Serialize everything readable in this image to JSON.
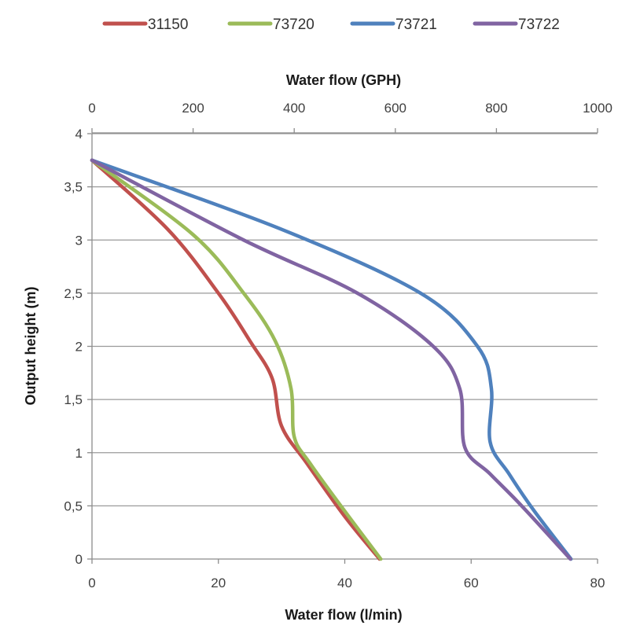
{
  "chart_data": {
    "type": "line",
    "legend_position": "top",
    "grid": "horizontal",
    "xlabel": "Water flow (l/min)",
    "x2label": "Water flow (GPH)",
    "ylabel": "Output height (m)",
    "xlim": [
      0,
      80
    ],
    "x2lim": [
      0,
      1000
    ],
    "ylim": [
      0,
      4
    ],
    "xticks": [
      "0",
      "20",
      "40",
      "60",
      "80"
    ],
    "x2ticks": [
      "0",
      "200",
      "400",
      "600",
      "800",
      "1000"
    ],
    "yticks": [
      "0",
      "0,5",
      "1",
      "1,5",
      "2",
      "2,5",
      "3",
      "3,5",
      "4"
    ],
    "series": [
      {
        "name": "31150",
        "color": "#c0504d",
        "points": [
          [
            45.5,
            0
          ],
          [
            40,
            0.4
          ],
          [
            34,
            0.9
          ],
          [
            30,
            1.25
          ],
          [
            28.5,
            1.7
          ],
          [
            25,
            2.05
          ],
          [
            20,
            2.5
          ],
          [
            12,
            3.1
          ],
          [
            0,
            3.75
          ]
        ]
      },
      {
        "name": "73720",
        "color": "#9bbb59",
        "points": [
          [
            45.7,
            0
          ],
          [
            40,
            0.45
          ],
          [
            34.5,
            0.9
          ],
          [
            32,
            1.15
          ],
          [
            31.5,
            1.6
          ],
          [
            29,
            2.05
          ],
          [
            24,
            2.5
          ],
          [
            16,
            3.05
          ],
          [
            0,
            3.75
          ]
        ]
      },
      {
        "name": "73721",
        "color": "#4f81bd",
        "points": [
          [
            75.8,
            0
          ],
          [
            70,
            0.45
          ],
          [
            66,
            0.8
          ],
          [
            63,
            1.1
          ],
          [
            63.2,
            1.6
          ],
          [
            61,
            2.0
          ],
          [
            52,
            2.5
          ],
          [
            30,
            3.1
          ],
          [
            0,
            3.75
          ]
        ]
      },
      {
        "name": "73722",
        "color": "#8064a2",
        "points": [
          [
            75.7,
            0
          ],
          [
            68,
            0.5
          ],
          [
            63,
            0.8
          ],
          [
            59,
            1.05
          ],
          [
            58.2,
            1.6
          ],
          [
            54,
            2.0
          ],
          [
            42,
            2.5
          ],
          [
            24,
            3.0
          ],
          [
            0,
            3.75
          ]
        ]
      }
    ]
  }
}
